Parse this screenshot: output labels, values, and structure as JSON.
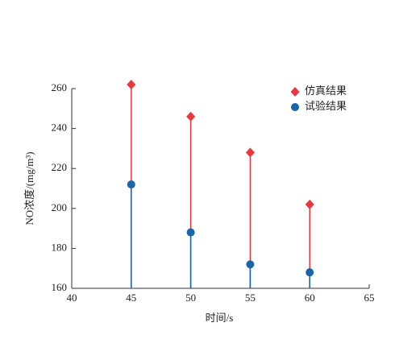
{
  "chart_data": {
    "type": "stem",
    "xlabel": "时间/s",
    "ylabel": "NO浓度/(mg/m³)",
    "x": [
      45,
      50,
      55,
      60
    ],
    "series": [
      {
        "name": "仿真结果",
        "color": "#e8383d",
        "marker": "diamond",
        "values": [
          262,
          246,
          228,
          202
        ]
      },
      {
        "name": "试验结果",
        "color": "#1a64a8",
        "marker": "circle",
        "values": [
          212,
          188,
          172,
          168
        ]
      }
    ],
    "xlim": [
      40,
      65
    ],
    "xticks": [
      40,
      45,
      50,
      55,
      60,
      65
    ],
    "ylim": [
      160,
      260
    ],
    "yticks": [
      160,
      180,
      200,
      220,
      240,
      260
    ],
    "legend": "upper right"
  }
}
